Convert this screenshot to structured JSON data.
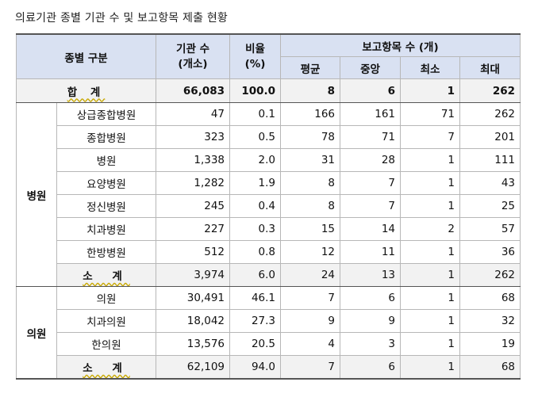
{
  "title": "의료기관 종별 기관 수 및 보고항목 제출 현황",
  "header": {
    "category": "종별 구분",
    "count": "기관 수\n(개소)",
    "ratio": "비율\n(%)",
    "report_group": "보고항목 수 (개)",
    "avg": "평균",
    "median": "중앙",
    "min": "최소",
    "max": "최대"
  },
  "total": {
    "label": "합 계",
    "count": "66,083",
    "ratio": "100.0",
    "avg": "8",
    "median": "6",
    "min": "1",
    "max": "262"
  },
  "hospital": {
    "group": "병원",
    "rows": [
      {
        "label": "상급종합병원",
        "count": "47",
        "ratio": "0.1",
        "avg": "166",
        "median": "161",
        "min": "71",
        "max": "262"
      },
      {
        "label": "종합병원",
        "count": "323",
        "ratio": "0.5",
        "avg": "78",
        "median": "71",
        "min": "7",
        "max": "201"
      },
      {
        "label": "병원",
        "count": "1,338",
        "ratio": "2.0",
        "avg": "31",
        "median": "28",
        "min": "1",
        "max": "111"
      },
      {
        "label": "요양병원",
        "count": "1,282",
        "ratio": "1.9",
        "avg": "8",
        "median": "7",
        "min": "1",
        "max": "43"
      },
      {
        "label": "정신병원",
        "count": "245",
        "ratio": "0.4",
        "avg": "8",
        "median": "7",
        "min": "1",
        "max": "25"
      },
      {
        "label": "치과병원",
        "count": "227",
        "ratio": "0.3",
        "avg": "15",
        "median": "14",
        "min": "2",
        "max": "57"
      },
      {
        "label": "한방병원",
        "count": "512",
        "ratio": "0.8",
        "avg": "12",
        "median": "11",
        "min": "1",
        "max": "36"
      }
    ],
    "subtotal": {
      "label": "소 계",
      "count": "3,974",
      "ratio": "6.0",
      "avg": "24",
      "median": "13",
      "min": "1",
      "max": "262"
    }
  },
  "clinic": {
    "group": "의원",
    "rows": [
      {
        "label": "의원",
        "count": "30,491",
        "ratio": "46.1",
        "avg": "7",
        "median": "6",
        "min": "1",
        "max": "68"
      },
      {
        "label": "치과의원",
        "count": "18,042",
        "ratio": "27.3",
        "avg": "9",
        "median": "9",
        "min": "1",
        "max": "32"
      },
      {
        "label": "한의원",
        "count": "13,576",
        "ratio": "20.5",
        "avg": "4",
        "median": "3",
        "min": "1",
        "max": "19"
      }
    ],
    "subtotal": {
      "label": "소 계",
      "count": "62,109",
      "ratio": "94.0",
      "avg": "7",
      "median": "6",
      "min": "1",
      "max": "68"
    }
  }
}
